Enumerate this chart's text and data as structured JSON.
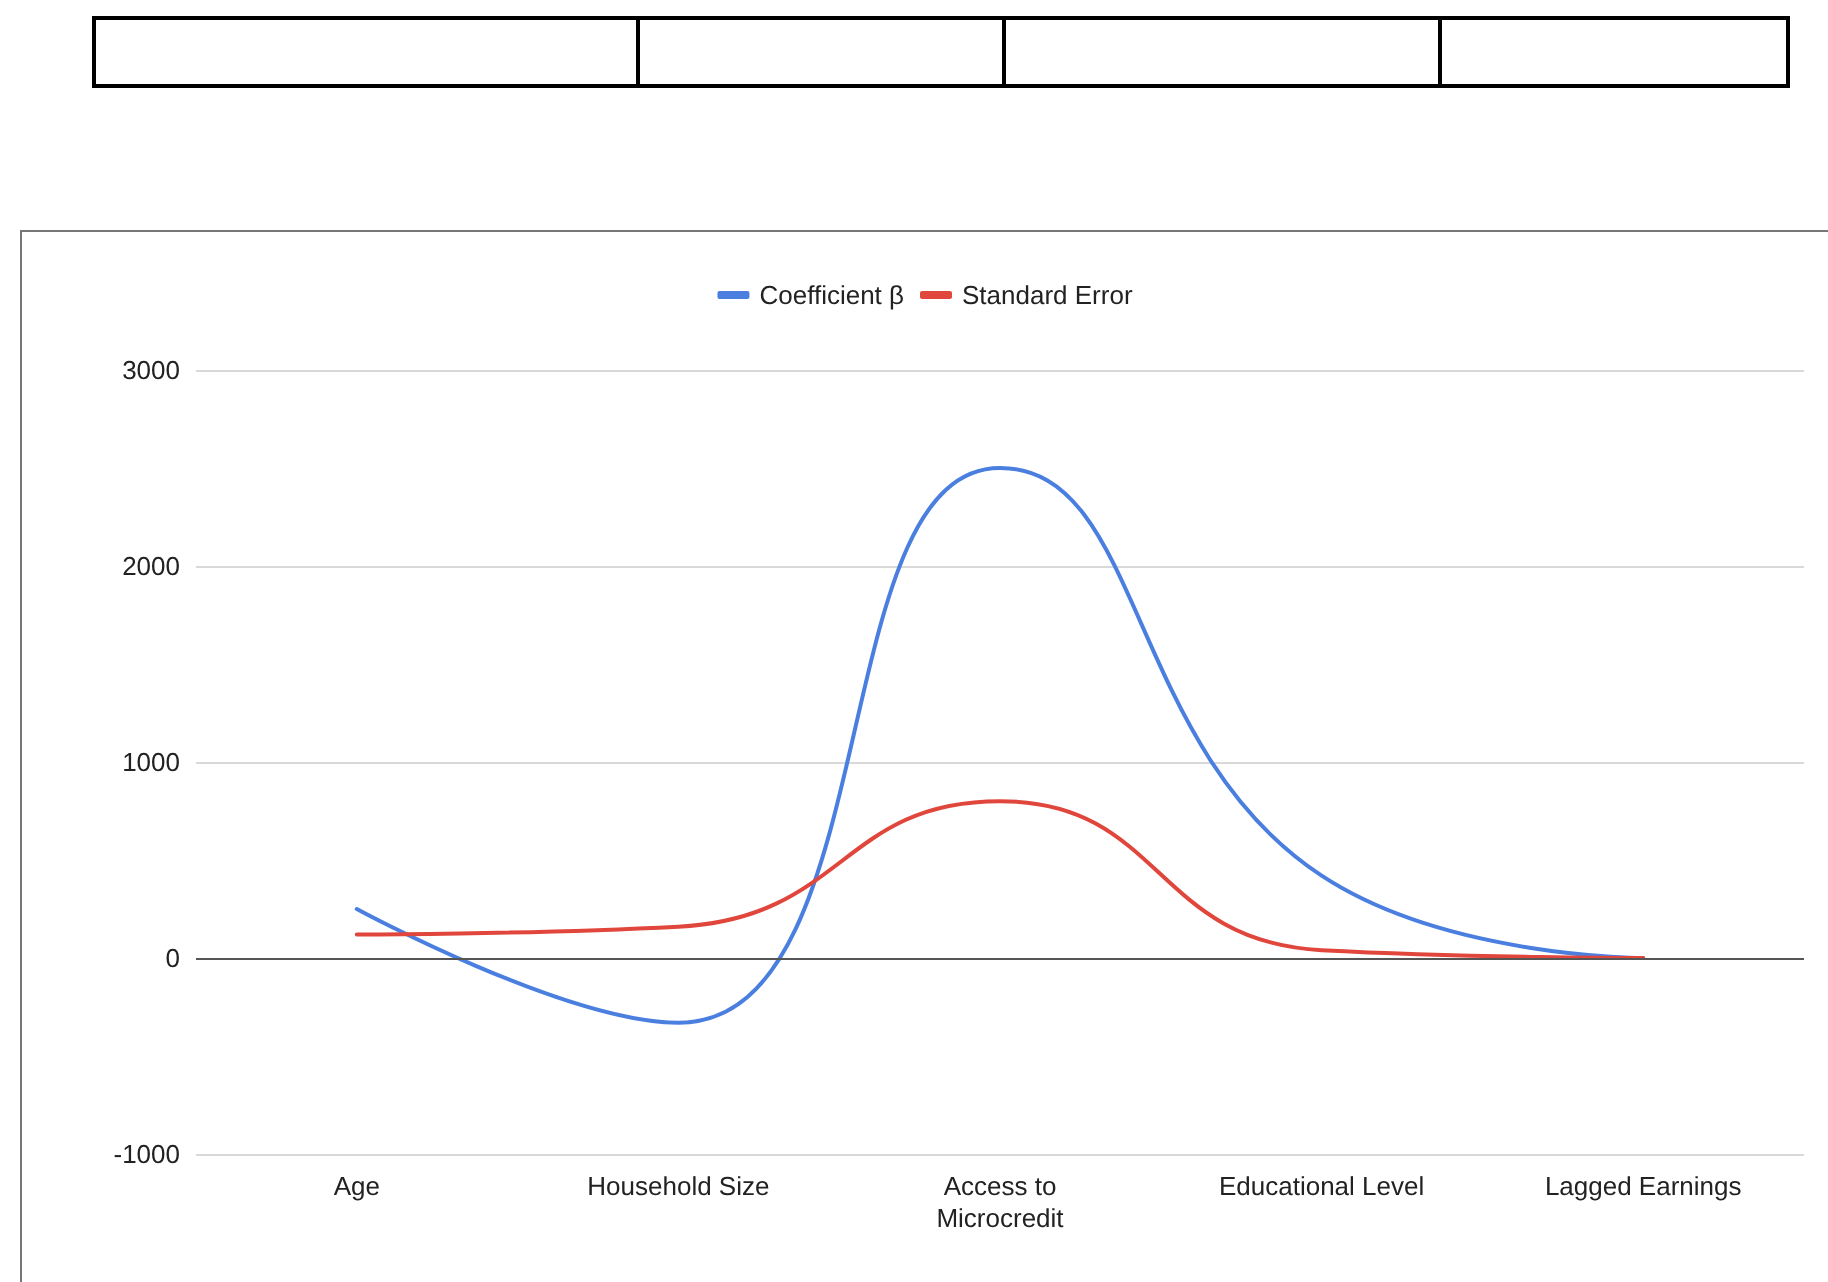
{
  "chart_data": {
    "type": "line",
    "categories": [
      "Age",
      "Household Size",
      "Access to\nMicrocredit",
      "Educational Level",
      "Lagged Earnings"
    ],
    "series": [
      {
        "name": "Coefficient β",
        "color": "#4a7fe0",
        "values": [
          250,
          -330,
          2500,
          420,
          0
        ]
      },
      {
        "name": "Standard Error",
        "color": "#e0463c",
        "values": [
          120,
          160,
          800,
          40,
          0
        ]
      }
    ],
    "ylim": [
      -1000,
      3000
    ],
    "yticks": [
      -1000,
      0,
      1000,
      2000,
      3000
    ],
    "grid": "y",
    "legend": "top",
    "marker": "none",
    "line_style": "solid"
  }
}
